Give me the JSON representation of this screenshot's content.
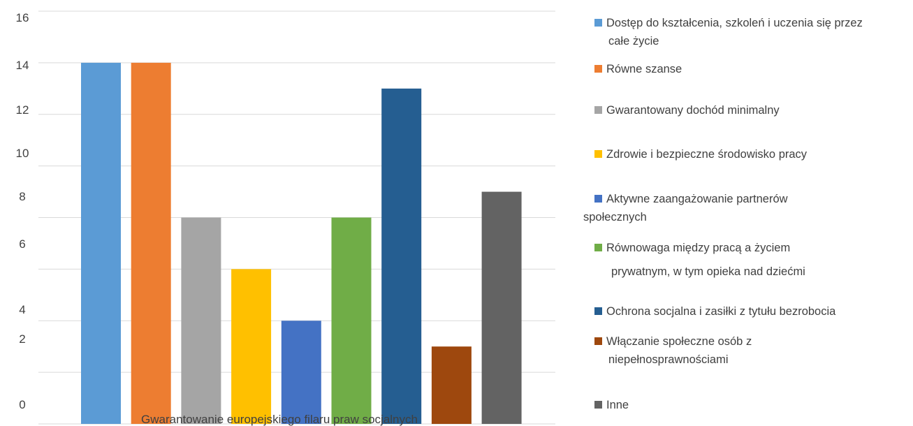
{
  "chart_data": {
    "type": "bar",
    "title": "",
    "xlabel": "Gwarantowanie europejskiego filaru praw socjalnych",
    "ylabel": "",
    "ytick_labels": [
      "0",
      "2",
      "4",
      "6",
      "8",
      "10",
      "12",
      "14",
      "16"
    ],
    "ylim": [
      0,
      16
    ],
    "grid": true,
    "legend_position": "right",
    "series": [
      {
        "name": "Dostęp do kształcenia, szkoleń i uczenia się przez całe życie",
        "value": 14,
        "color": "#5b9bd5"
      },
      {
        "name": "Równe szanse",
        "value": 14,
        "color": "#ed7d31"
      },
      {
        "name": "Gwarantowany dochód minimalny",
        "value": 8,
        "color": "#a5a5a5"
      },
      {
        "name": "Zdrowie i bezpieczne środowisko pracy",
        "value": 6,
        "color": "#ffc000"
      },
      {
        "name": "Aktywne zaangażowanie partnerów społecznych",
        "value": 4,
        "color": "#4472c4"
      },
      {
        "name": "Równowaga między pracą a życiem prywatnym, w tym opieka nad dziećmi",
        "value": 8,
        "color": "#70ad47"
      },
      {
        "name": "Ochrona socjalna i zasiłki z tytułu bezrobocia",
        "value": 13,
        "color": "#255e91"
      },
      {
        "name": "Włączanie społeczne osób z niepełnosprawnościami",
        "value": 3,
        "color": "#9e480e"
      },
      {
        "name": "Inne",
        "value": 9,
        "color": "#636363"
      }
    ]
  },
  "legend": {
    "items": [
      {
        "lines": [
          "Dostęp do kształcenia, szkoleń i uczenia się przez",
          "całe życie"
        ]
      },
      {
        "lines": [
          "Równe szanse"
        ]
      },
      {
        "lines": [
          "Gwarantowany dochód minimalny"
        ]
      },
      {
        "lines": [
          "Zdrowie i bezpieczne środowisko pracy"
        ]
      },
      {
        "lines": [
          "Aktywne zaangażowanie partnerów",
          "społecznych"
        ]
      },
      {
        "lines": [
          "Równowaga między pracą a życiem",
          "prywatnym, w tym opieka nad dziećmi"
        ]
      },
      {
        "lines": [
          "Ochrona socjalna i zasiłki z tytułu bezrobocia"
        ]
      },
      {
        "lines": [
          "Włączanie społeczne osób z",
          "niepełnosprawnościami"
        ]
      },
      {
        "lines": [
          "Inne"
        ]
      }
    ]
  }
}
